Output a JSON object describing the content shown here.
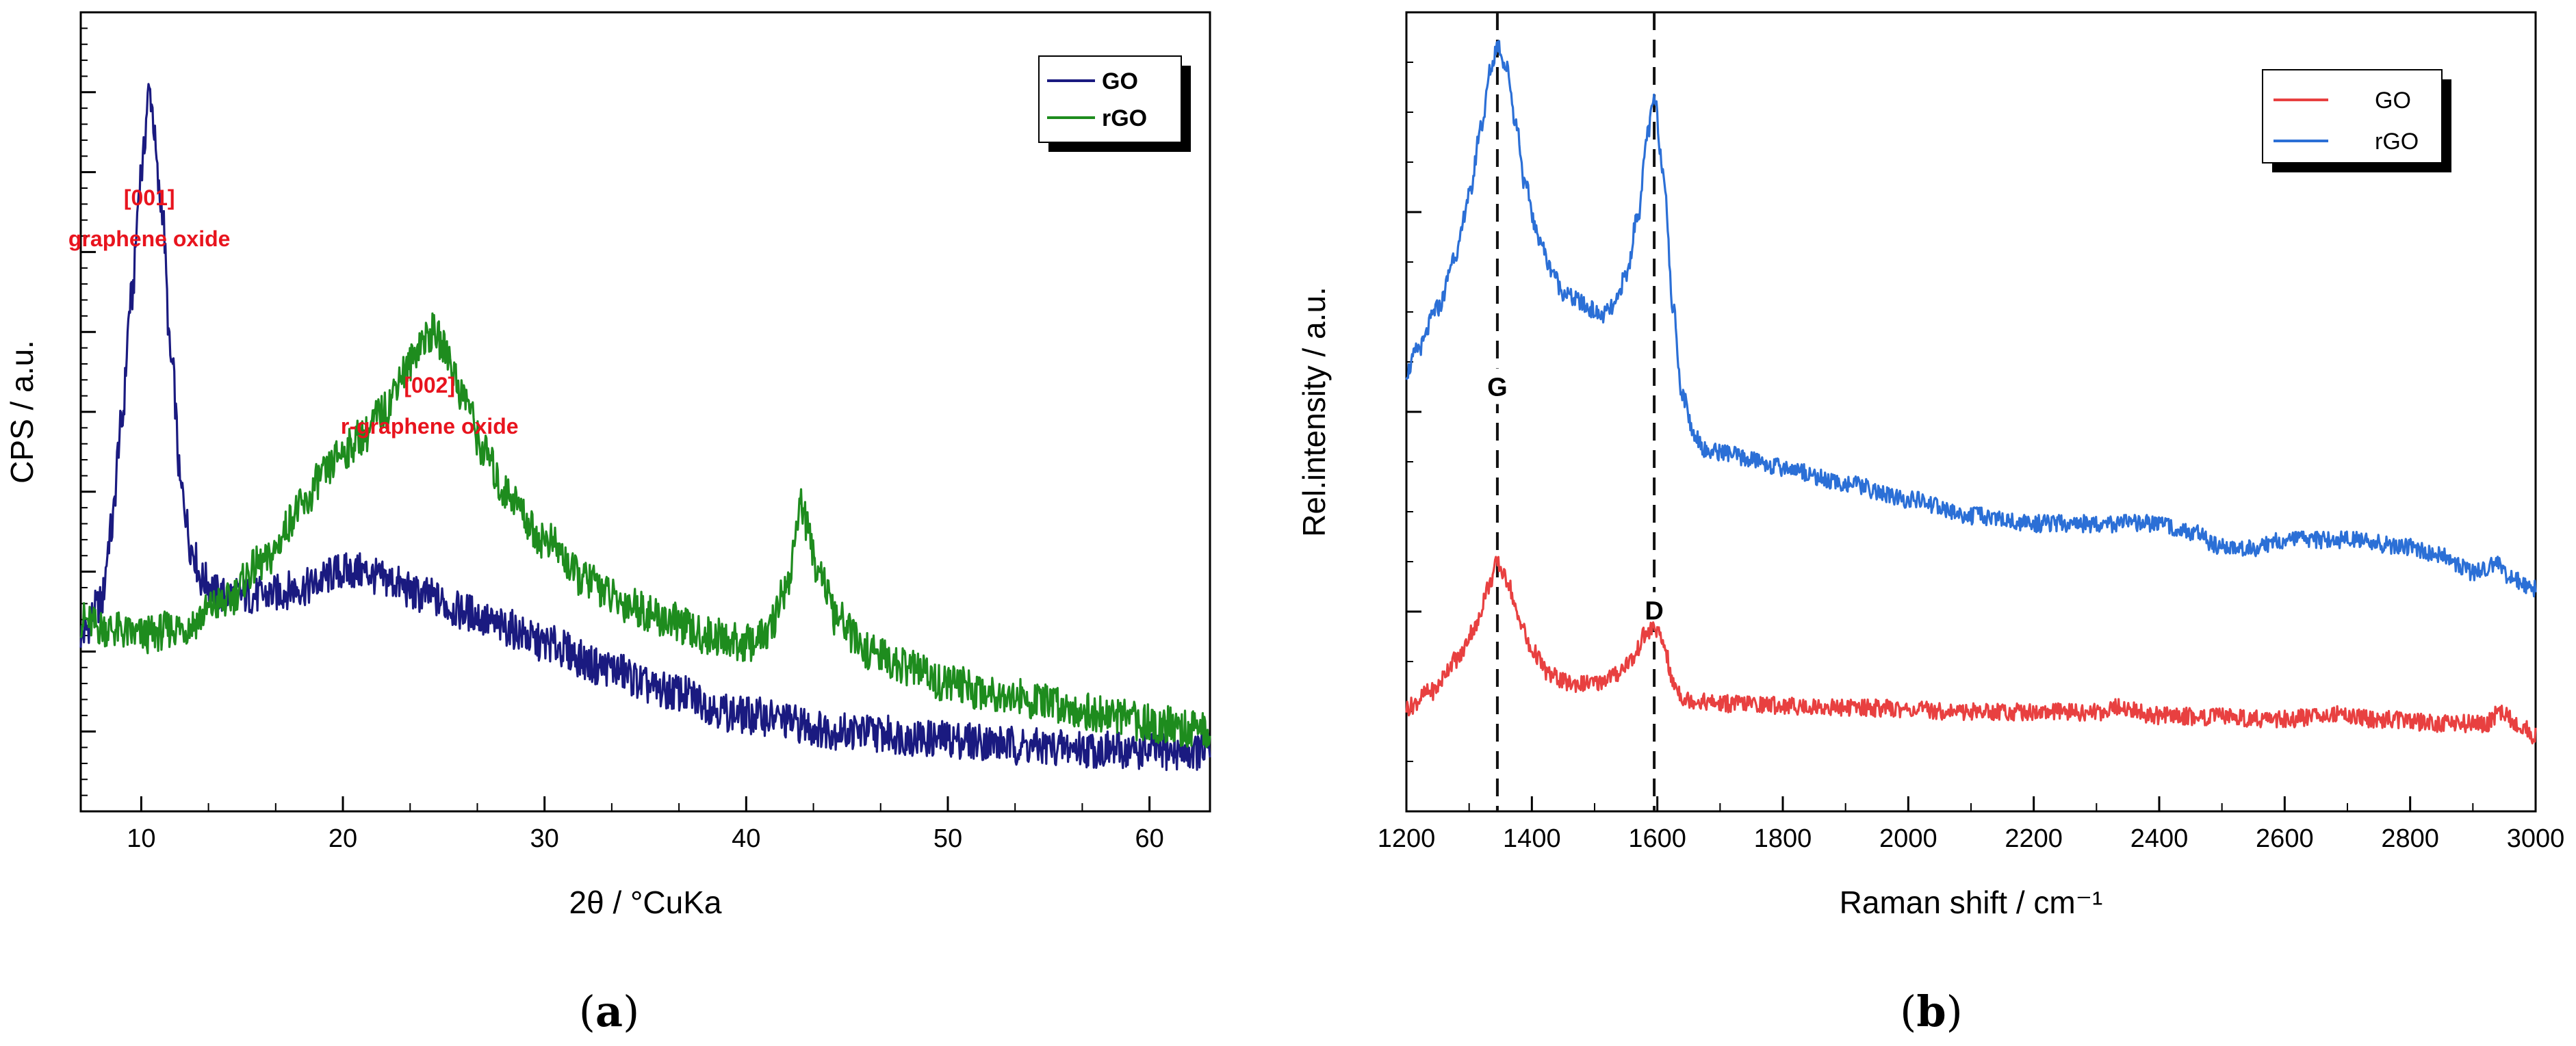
{
  "chart_data": [
    {
      "type": "line",
      "panel": "a",
      "panel_label": "a",
      "xlabel": "2θ / °CuKa",
      "ylabel": "CPS / a.u.",
      "xlim": [
        7,
        63
      ],
      "ylim": [
        0,
        100
      ],
      "xticks": [
        10,
        20,
        30,
        40,
        50,
        60
      ],
      "y_tick_labels_shown": false,
      "legend": {
        "location": "top-right",
        "entries": [
          "GO",
          "rGO"
        ],
        "bold": true
      },
      "series": [
        {
          "name": "GO",
          "color": "#1a1a80",
          "x": [
            7,
            8,
            8.5,
            9,
            9.5,
            10,
            10.4,
            11,
            11.5,
            12,
            12.5,
            13,
            14,
            16,
            18,
            20,
            21,
            22,
            24,
            26,
            28,
            30,
            33,
            36,
            40,
            45,
            50,
            55,
            60,
            63
          ],
          "y": [
            22,
            26,
            35,
            48,
            64,
            80,
            90,
            76,
            56,
            40,
            33,
            29,
            27,
            27,
            28,
            30,
            30,
            29,
            27,
            25,
            23,
            21,
            18,
            15,
            12,
            10,
            9,
            8,
            7.5,
            7.5
          ]
        },
        {
          "name": "rGO",
          "color": "#1e8c1e",
          "x": [
            7,
            8,
            10,
            12,
            14,
            16,
            18,
            19,
            20,
            21,
            22,
            23,
            24,
            24.5,
            25,
            26,
            27,
            28,
            30,
            32,
            34,
            36,
            38,
            40,
            41,
            42,
            42.7,
            43.5,
            44.5,
            46,
            48,
            50,
            52,
            55,
            58,
            60,
            63
          ],
          "y": [
            24,
            23,
            22,
            23,
            26,
            31,
            38,
            42,
            45,
            47,
            50,
            55,
            59,
            60,
            58,
            52,
            45,
            40,
            34,
            29,
            26,
            24,
            22,
            21,
            22,
            28,
            38,
            31,
            24,
            20,
            18,
            16,
            15,
            13.5,
            12,
            11,
            10
          ]
        }
      ],
      "annotations": [
        {
          "text": [
            "[001]",
            "graphene oxide"
          ],
          "x": 10.4,
          "color": "#e8141e"
        },
        {
          "text": [
            "[002]",
            "r-graphene oxide"
          ],
          "x": 24.3,
          "color": "#e8141e"
        }
      ]
    },
    {
      "type": "line",
      "panel": "b",
      "panel_label": "b",
      "xlabel": "Raman shift / cm⁻¹",
      "ylabel": "Rel.intensity / a.u.",
      "xlim": [
        1200,
        3000
      ],
      "ylim": [
        0,
        100
      ],
      "xticks": [
        1200,
        1400,
        1600,
        1800,
        2000,
        2200,
        2400,
        2600,
        2800,
        3000
      ],
      "y_tick_labels_shown": false,
      "legend": {
        "location": "top-right",
        "entries": [
          "GO",
          "rGO"
        ],
        "bold": false
      },
      "series": [
        {
          "name": "GO",
          "color": "#e84040",
          "x": [
            1200,
            1240,
            1280,
            1310,
            1330,
            1345,
            1360,
            1380,
            1400,
            1430,
            1460,
            1500,
            1530,
            1560,
            1580,
            1595,
            1610,
            1625,
            1645,
            1700,
            1900,
            2100,
            2300,
            2330,
            2400,
            2500,
            2600,
            2680,
            2750,
            2850,
            2920,
            2945,
            2970,
            3000
          ],
          "y": [
            13,
            15,
            19,
            23,
            28,
            31,
            29,
            24,
            20,
            17,
            16,
            16,
            17,
            19,
            22,
            23,
            21,
            16,
            14,
            13.5,
            13,
            12.5,
            12.4,
            13,
            12,
            11.8,
            11.5,
            12.3,
            11.5,
            11,
            11,
            12.5,
            11,
            9.5
          ]
        },
        {
          "name": "rGO",
          "color": "#2b6fd6",
          "x": [
            1200,
            1220,
            1250,
            1280,
            1300,
            1320,
            1335,
            1345,
            1360,
            1375,
            1390,
            1410,
            1430,
            1450,
            1470,
            1490,
            1510,
            1530,
            1550,
            1570,
            1585,
            1595,
            1610,
            1625,
            1640,
            1660,
            1680,
            1700,
            1750,
            1800,
            1900,
            2000,
            2100,
            2200,
            2300,
            2400,
            2450,
            2500,
            2550,
            2600,
            2700,
            2800,
            2850,
            2900,
            2940,
            2960,
            3000
          ],
          "y": [
            55,
            58,
            63,
            70,
            77,
            86,
            93,
            96,
            93,
            86,
            78,
            72,
            68,
            65,
            64,
            63,
            62,
            63,
            67,
            75,
            85,
            89,
            80,
            63,
            52,
            47,
            45,
            45,
            44,
            43,
            41,
            39,
            37,
            36,
            36,
            36,
            35,
            33,
            33,
            34,
            34,
            33,
            32,
            30,
            31,
            29,
            28
          ]
        }
      ],
      "reference_lines": [
        {
          "x": 1345,
          "label": "G",
          "style": "dashed"
        },
        {
          "x": 1595,
          "label": "D",
          "style": "dashed"
        }
      ]
    }
  ]
}
